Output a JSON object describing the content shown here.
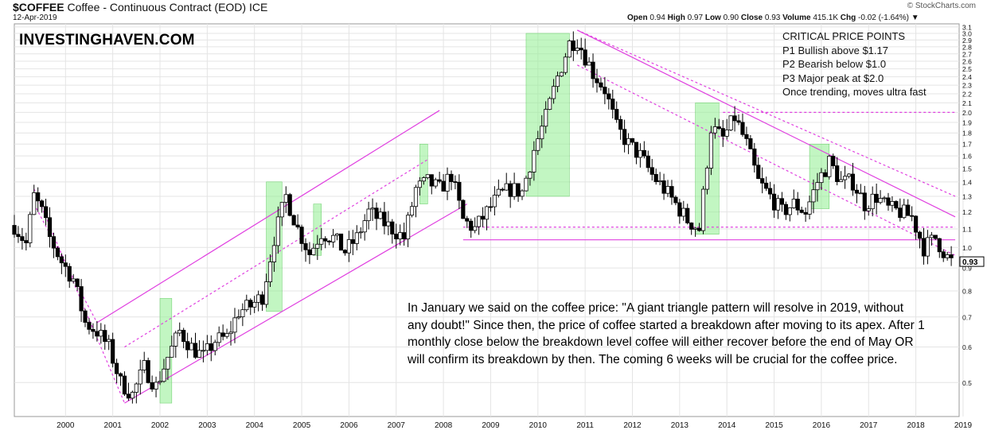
{
  "header": {
    "symbol": "$COFFEE",
    "symbol_desc": "Coffee - Continuous Contract (EOD)",
    "exchange": "ICE",
    "date": "12-Apr-2019",
    "credit": "© StockCharts.com",
    "open_label": "Open",
    "open": "0.94",
    "high_label": "High",
    "high": "0.97",
    "low_label": "Low",
    "low": "0.90",
    "close_label": "Close",
    "close": "0.93",
    "volume_label": "Volume",
    "volume": "415.1K",
    "chg_label": "Chg",
    "chg": "-0.02 (-1.64%)",
    "chg_arrow": "▼"
  },
  "brand": "INVESTINGHAVEN.COM",
  "critical": {
    "title": "CRITICAL PRICE POINTS",
    "items": [
      "P1 Bullish above $1.17",
      "P2 Bearish below $1.0",
      "P3 Major peak at $2.0",
      "Once trending, moves ultra fast"
    ]
  },
  "note": "In January we said on the coffee price: \"A giant triangle pattern will resolve in 2019, without any doubt!\" Since then, the price of coffee started a breakdown after moving to its apex. After 1 monthly close below the breakdown level coffee will either recover before the end of May OR will confirm its breakdown by then. The coming 6 weeks will be crucial for the coffee price.",
  "colors": {
    "up": "#ffffff",
    "down": "#000000",
    "trend": "#e040e0",
    "highlight": "#90ee90",
    "grid": "#e4e4e4",
    "last_price": "#000000"
  },
  "chart_data": {
    "type": "candlestick",
    "scale": "log",
    "ylim": [
      0.42,
      3.15
    ],
    "xlim": [
      "1999-06",
      "2019-06"
    ],
    "ytick_labels": [
      "0.5",
      "0.6",
      "0.7",
      "0.8",
      "0.9",
      "1.0",
      "1.1",
      "1.2",
      "1.3",
      "1.4",
      "1.5",
      "1.6",
      "1.7",
      "1.8",
      "1.9",
      "2.0",
      "2.1",
      "2.2",
      "2.3",
      "2.4",
      "2.5",
      "2.6",
      "2.7",
      "2.8",
      "2.9",
      "3.0",
      "3.1"
    ],
    "xtick_labels": [
      "2000",
      "2001",
      "2002",
      "2003",
      "2004",
      "2005",
      "2006",
      "2007",
      "2008",
      "2009",
      "2010",
      "2011",
      "2012",
      "2013",
      "2014",
      "2015",
      "2016",
      "2017",
      "2018",
      "2019"
    ],
    "last_price": 0.93,
    "last_price_label": "0.93",
    "closes": [
      {
        "t": "1999-06",
        "c": 1.12
      },
      {
        "t": "1999-09",
        "c": 1.02
      },
      {
        "t": "1999-11",
        "c": 1.3
      },
      {
        "t": "2000-01",
        "c": 1.2
      },
      {
        "t": "2000-03",
        "c": 1.05
      },
      {
        "t": "2000-06",
        "c": 0.93
      },
      {
        "t": "2000-09",
        "c": 0.85
      },
      {
        "t": "2000-12",
        "c": 0.68
      },
      {
        "t": "2001-03",
        "c": 0.65
      },
      {
        "t": "2001-06",
        "c": 0.6
      },
      {
        "t": "2001-09",
        "c": 0.5
      },
      {
        "t": "2001-12",
        "c": 0.47
      },
      {
        "t": "2002-03",
        "c": 0.54
      },
      {
        "t": "2002-06",
        "c": 0.49
      },
      {
        "t": "2002-09",
        "c": 0.57
      },
      {
        "t": "2002-12",
        "c": 0.65
      },
      {
        "t": "2003-03",
        "c": 0.6
      },
      {
        "t": "2003-06",
        "c": 0.57
      },
      {
        "t": "2003-09",
        "c": 0.62
      },
      {
        "t": "2003-12",
        "c": 0.63
      },
      {
        "t": "2004-03",
        "c": 0.72
      },
      {
        "t": "2004-06",
        "c": 0.74
      },
      {
        "t": "2004-09",
        "c": 0.78
      },
      {
        "t": "2004-12",
        "c": 1.05
      },
      {
        "t": "2005-03",
        "c": 1.3
      },
      {
        "t": "2005-06",
        "c": 1.1
      },
      {
        "t": "2005-09",
        "c": 0.97
      },
      {
        "t": "2005-12",
        "c": 1.08
      },
      {
        "t": "2006-03",
        "c": 1.05
      },
      {
        "t": "2006-06",
        "c": 0.98
      },
      {
        "t": "2006-09",
        "c": 1.05
      },
      {
        "t": "2006-12",
        "c": 1.2
      },
      {
        "t": "2007-03",
        "c": 1.15
      },
      {
        "t": "2007-06",
        "c": 1.1
      },
      {
        "t": "2007-09",
        "c": 1.05
      },
      {
        "t": "2007-12",
        "c": 1.35
      },
      {
        "t": "2008-03",
        "c": 1.4
      },
      {
        "t": "2008-06",
        "c": 1.35
      },
      {
        "t": "2008-09",
        "c": 1.45
      },
      {
        "t": "2008-12",
        "c": 1.15
      },
      {
        "t": "2009-03",
        "c": 1.1
      },
      {
        "t": "2009-06",
        "c": 1.2
      },
      {
        "t": "2009-09",
        "c": 1.3
      },
      {
        "t": "2009-12",
        "c": 1.35
      },
      {
        "t": "2010-03",
        "c": 1.33
      },
      {
        "t": "2010-06",
        "c": 1.65
      },
      {
        "t": "2010-09",
        "c": 1.95
      },
      {
        "t": "2010-12",
        "c": 2.4
      },
      {
        "t": "2011-03",
        "c": 2.85
      },
      {
        "t": "2011-05",
        "c": 2.9
      },
      {
        "t": "2011-09",
        "c": 2.45
      },
      {
        "t": "2011-12",
        "c": 2.25
      },
      {
        "t": "2012-03",
        "c": 1.85
      },
      {
        "t": "2012-06",
        "c": 1.7
      },
      {
        "t": "2012-09",
        "c": 1.6
      },
      {
        "t": "2012-12",
        "c": 1.45
      },
      {
        "t": "2013-03",
        "c": 1.35
      },
      {
        "t": "2013-06",
        "c": 1.25
      },
      {
        "t": "2013-09",
        "c": 1.15
      },
      {
        "t": "2013-12",
        "c": 1.1
      },
      {
        "t": "2014-03",
        "c": 1.85
      },
      {
        "t": "2014-06",
        "c": 1.75
      },
      {
        "t": "2014-09",
        "c": 1.95
      },
      {
        "t": "2014-12",
        "c": 1.7
      },
      {
        "t": "2015-03",
        "c": 1.4
      },
      {
        "t": "2015-06",
        "c": 1.3
      },
      {
        "t": "2015-09",
        "c": 1.2
      },
      {
        "t": "2015-12",
        "c": 1.25
      },
      {
        "t": "2016-03",
        "c": 1.2
      },
      {
        "t": "2016-06",
        "c": 1.4
      },
      {
        "t": "2016-09",
        "c": 1.55
      },
      {
        "t": "2016-12",
        "c": 1.4
      },
      {
        "t": "2017-03",
        "c": 1.4
      },
      {
        "t": "2017-06",
        "c": 1.25
      },
      {
        "t": "2017-09",
        "c": 1.3
      },
      {
        "t": "2017-12",
        "c": 1.22
      },
      {
        "t": "2018-03",
        "c": 1.2
      },
      {
        "t": "2018-06",
        "c": 1.17
      },
      {
        "t": "2018-09",
        "c": 1.0
      },
      {
        "t": "2018-12",
        "c": 1.05
      },
      {
        "t": "2019-03",
        "c": 0.95
      },
      {
        "t": "2019-04",
        "c": 0.93
      }
    ],
    "channels": [
      {
        "from": [
          "2001-03",
          0.68
        ],
        "to": [
          "2008-06",
          2.02
        ],
        "style": "solid"
      },
      {
        "from": [
          "2001-10",
          0.45
        ],
        "to": [
          "2009-01",
          1.25
        ],
        "style": "solid"
      },
      {
        "from": [
          "2001-10",
          0.6
        ],
        "to": [
          "2008-03",
          1.57
        ],
        "style": "dotted"
      },
      {
        "from": [
          "1999-11",
          1.35
        ],
        "to": [
          "2001-10",
          0.45
        ],
        "style": "dotted"
      },
      {
        "from": [
          "1999-11",
          1.25
        ],
        "to": [
          "2001-03",
          0.68
        ],
        "style": "dotted"
      },
      {
        "from": [
          "2011-05",
          3.05
        ],
        "to": [
          "2019-05",
          1.17
        ],
        "style": "solid"
      },
      {
        "from": [
          "2008-12",
          1.04
        ],
        "to": [
          "2019-05",
          1.04
        ],
        "style": "solid"
      },
      {
        "from": [
          "2011-05",
          3.05
        ],
        "to": [
          "2019-05",
          1.3
        ],
        "style": "dotted"
      },
      {
        "from": [
          "2011-05",
          2.55
        ],
        "to": [
          "2019-05",
          0.96
        ],
        "style": "dotted"
      },
      {
        "from": [
          "2014-06",
          2.0
        ],
        "to": [
          "2019-05",
          2.0
        ],
        "style": "dotted"
      },
      {
        "from": [
          "2008-12",
          1.11
        ],
        "to": [
          "2019-05",
          1.11
        ],
        "style": "dotted"
      }
    ],
    "highlights": [
      {
        "from": "2002-07",
        "to": "2002-10",
        "low": 0.45,
        "high": 0.77
      },
      {
        "from": "2004-10",
        "to": "2005-02",
        "low": 0.72,
        "high": 1.4
      },
      {
        "from": "2005-10",
        "to": "2005-12",
        "low": 0.96,
        "high": 1.25
      },
      {
        "from": "2008-01",
        "to": "2008-03",
        "low": 1.25,
        "high": 1.7
      },
      {
        "from": "2010-04",
        "to": "2011-03",
        "low": 1.3,
        "high": 3.0
      },
      {
        "from": "2013-11",
        "to": "2014-05",
        "low": 1.07,
        "high": 2.1
      },
      {
        "from": "2016-04",
        "to": "2016-09",
        "low": 1.22,
        "high": 1.7
      }
    ]
  }
}
